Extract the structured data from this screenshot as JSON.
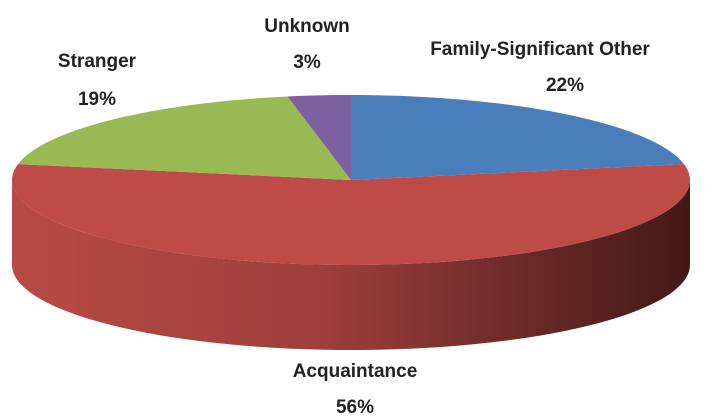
{
  "chart_data": {
    "type": "pie3d",
    "categories": [
      "Family-Significant Other",
      "Acquaintance",
      "Stranger",
      "Unknown"
    ],
    "values": [
      22,
      56,
      19,
      3
    ],
    "value_labels": [
      "22%",
      "56%",
      "19%",
      "3%"
    ],
    "colors": [
      "#4a7ebb",
      "#be4b48",
      "#98b954",
      "#7d60a0"
    ]
  }
}
